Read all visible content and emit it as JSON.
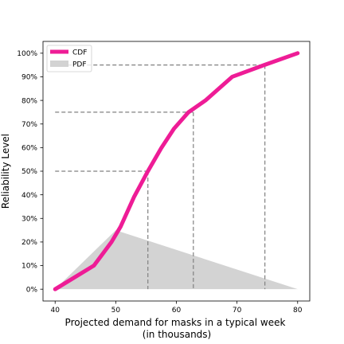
{
  "chart_data": {
    "type": "line",
    "title": "",
    "xlabel": "Projected demand for masks in a typical week",
    "xlabel_line2": "(in thousands)",
    "ylabel": "Reliability Level",
    "xlim": [
      38,
      82
    ],
    "ylim": [
      -5,
      105
    ],
    "xticks": [
      40,
      50,
      60,
      70,
      80
    ],
    "xtick_labels": [
      "40",
      "50",
      "60",
      "70",
      "80"
    ],
    "yticks": [
      0,
      10,
      20,
      30,
      40,
      50,
      60,
      70,
      80,
      90,
      100
    ],
    "ytick_labels": [
      "0%",
      "10%",
      "20%",
      "30%",
      "40%",
      "50%",
      "60%",
      "70%",
      "80%",
      "90%",
      "100%"
    ],
    "grid": false,
    "legend_position": "top-left",
    "series": [
      {
        "name": "CDF",
        "kind": "line",
        "color": "#EE1C96",
        "x": [
          40,
          46.4,
          49.3,
          50.8,
          53.0,
          55.3,
          57.5,
          59.6,
          62.0,
          64.8,
          69.2,
          74.5,
          80
        ],
        "y": [
          0,
          10,
          20,
          26.5,
          39,
          50,
          59.8,
          68,
          75,
          80,
          90,
          95,
          100
        ]
      },
      {
        "name": "PDF",
        "kind": "area",
        "color": "#D3D3D3",
        "x": [
          40,
          50,
          80
        ],
        "y": [
          0,
          25,
          0
        ]
      }
    ],
    "reference_lines": [
      {
        "x": 55.3,
        "y": 50,
        "y_label": "50%"
      },
      {
        "x": 62.8,
        "y": 75,
        "y_label": "75%"
      },
      {
        "x": 74.6,
        "y": 95,
        "y_label": "95%"
      }
    ],
    "reference_line_color": "#808080"
  }
}
